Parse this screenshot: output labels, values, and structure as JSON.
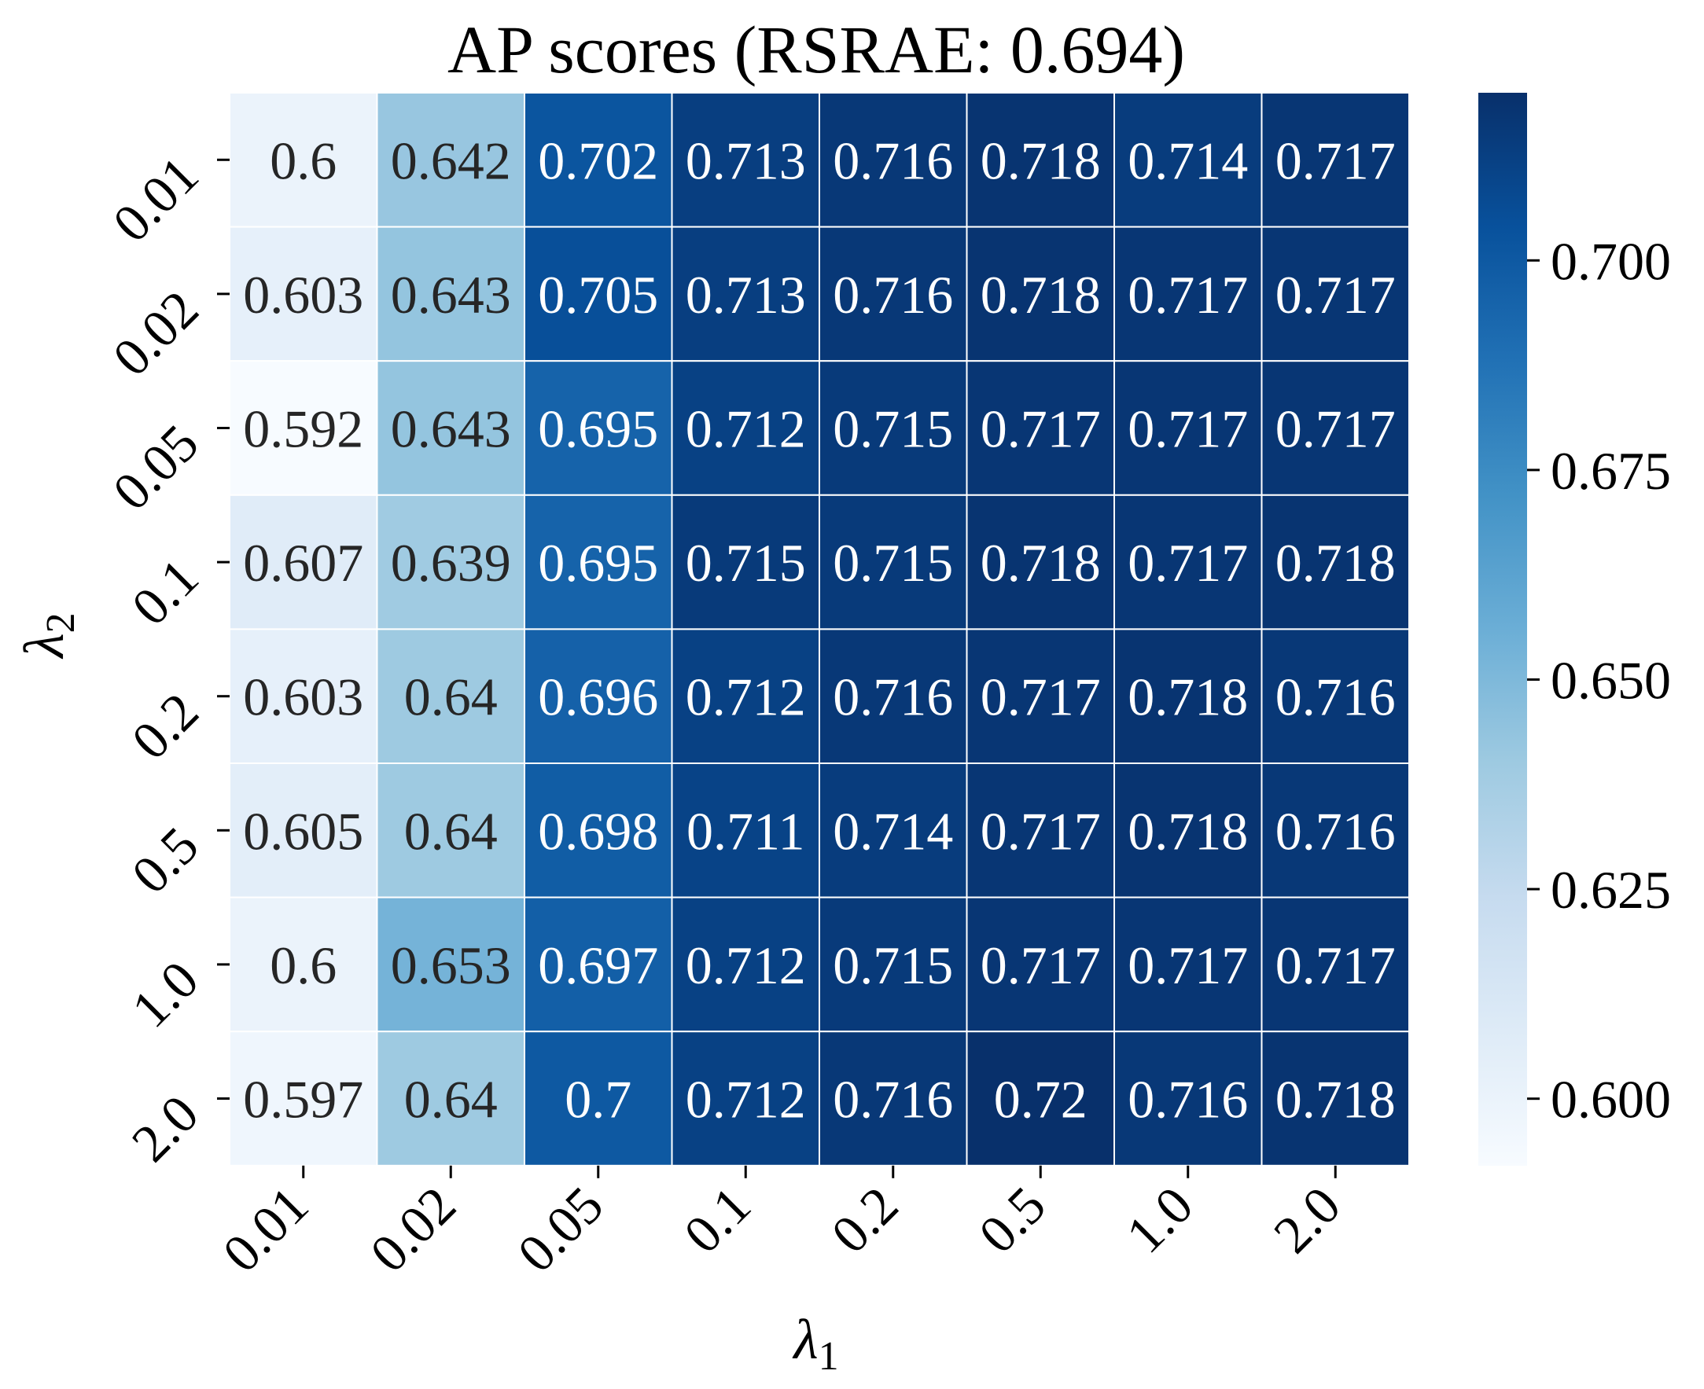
{
  "chart_data": {
    "type": "heatmap",
    "title": "AP scores (RSRAE: 0.694)",
    "xlabel": "λ1",
    "ylabel": "λ2",
    "x_categories": [
      "0.01",
      "0.02",
      "0.05",
      "0.1",
      "0.2",
      "0.5",
      "1.0",
      "2.0"
    ],
    "y_categories": [
      "0.01",
      "0.02",
      "0.05",
      "0.1",
      "0.2",
      "0.5",
      "1.0",
      "2.0"
    ],
    "values": [
      [
        0.6,
        0.642,
        0.702,
        0.713,
        0.716,
        0.718,
        0.714,
        0.717
      ],
      [
        0.603,
        0.643,
        0.705,
        0.713,
        0.716,
        0.718,
        0.717,
        0.717
      ],
      [
        0.592,
        0.643,
        0.695,
        0.712,
        0.715,
        0.717,
        0.717,
        0.717
      ],
      [
        0.607,
        0.639,
        0.695,
        0.715,
        0.715,
        0.718,
        0.717,
        0.718
      ],
      [
        0.603,
        0.64,
        0.696,
        0.712,
        0.716,
        0.717,
        0.718,
        0.716
      ],
      [
        0.605,
        0.64,
        0.698,
        0.711,
        0.714,
        0.717,
        0.718,
        0.716
      ],
      [
        0.6,
        0.653,
        0.697,
        0.712,
        0.715,
        0.717,
        0.717,
        0.717
      ],
      [
        0.597,
        0.64,
        0.7,
        0.712,
        0.716,
        0.72,
        0.716,
        0.718
      ]
    ],
    "cell_labels": [
      [
        "0.6",
        "0.642",
        "0.702",
        "0.713",
        "0.716",
        "0.718",
        "0.714",
        "0.717"
      ],
      [
        "0.603",
        "0.643",
        "0.705",
        "0.713",
        "0.716",
        "0.718",
        "0.717",
        "0.717"
      ],
      [
        "0.592",
        "0.643",
        "0.695",
        "0.712",
        "0.715",
        "0.717",
        "0.717",
        "0.717"
      ],
      [
        "0.607",
        "0.639",
        "0.695",
        "0.715",
        "0.715",
        "0.718",
        "0.717",
        "0.718"
      ],
      [
        "0.603",
        "0.64",
        "0.696",
        "0.712",
        "0.716",
        "0.717",
        "0.718",
        "0.716"
      ],
      [
        "0.605",
        "0.64",
        "0.698",
        "0.711",
        "0.714",
        "0.717",
        "0.718",
        "0.716"
      ],
      [
        "0.6",
        "0.653",
        "0.697",
        "0.712",
        "0.715",
        "0.717",
        "0.717",
        "0.717"
      ],
      [
        "0.597",
        "0.64",
        "0.7",
        "0.712",
        "0.716",
        "0.72",
        "0.716",
        "0.718"
      ]
    ],
    "colorbar": {
      "ticks": [
        0.6,
        0.625,
        0.65,
        0.675,
        0.7
      ],
      "tick_labels": [
        "0.600",
        "0.625",
        "0.650",
        "0.675",
        "0.700"
      ],
      "vmin": 0.592,
      "vmax": 0.72
    },
    "colormap": "Blues",
    "colormap_stops": [
      "#f7fbff",
      "#deebf7",
      "#c6dbef",
      "#9ecae1",
      "#6baed6",
      "#4292c6",
      "#2171b5",
      "#08519c",
      "#08306b"
    ],
    "grid_line_color": "#ffffff",
    "text_dark_color": "#262626",
    "text_light_color": "#ffffff",
    "legend": "colorbar right"
  }
}
